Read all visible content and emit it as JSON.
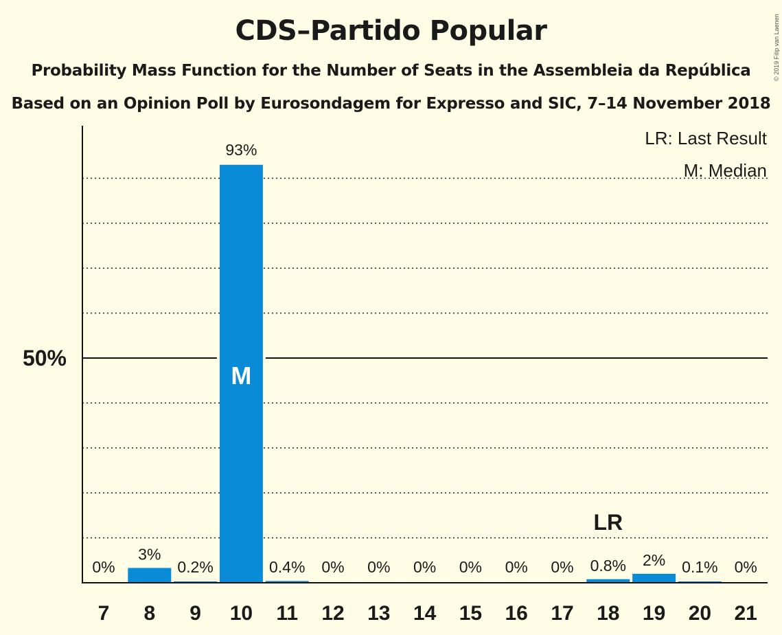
{
  "chart_data": {
    "type": "bar",
    "title": "CDS–Partido Popular",
    "subtitle1": "Probability Mass Function for the Number of Seats in the Assembleia da República",
    "subtitle2": "Based on an Opinion Poll by Eurosondagem for Expresso and SIC, 7–14 November 2018",
    "credit": "© 2019 Filip van Laenen",
    "legend": {
      "last_result": "LR: Last Result",
      "median": "M: Median"
    },
    "categories": [
      "7",
      "8",
      "9",
      "10",
      "11",
      "12",
      "13",
      "14",
      "15",
      "16",
      "17",
      "18",
      "19",
      "20",
      "21"
    ],
    "values": [
      0,
      3.3,
      0.2,
      93,
      0.4,
      0,
      0,
      0,
      0,
      0,
      0,
      0.8,
      2,
      0.1,
      0
    ],
    "labels": [
      "0%",
      "3%",
      "0.2%",
      "93%",
      "0.4%",
      "0%",
      "0%",
      "0%",
      "0%",
      "0%",
      "0%",
      "0.8%",
      "2%",
      "0.1%",
      "0%"
    ],
    "ylim": [
      0,
      100
    ],
    "ytick_label": "50%",
    "ytick_value": 50,
    "grid_step": 10,
    "median_category": "10",
    "median_marker": "M",
    "last_result_category": "18",
    "last_result_marker": "LR",
    "bar_color": "#0a8bd8"
  }
}
